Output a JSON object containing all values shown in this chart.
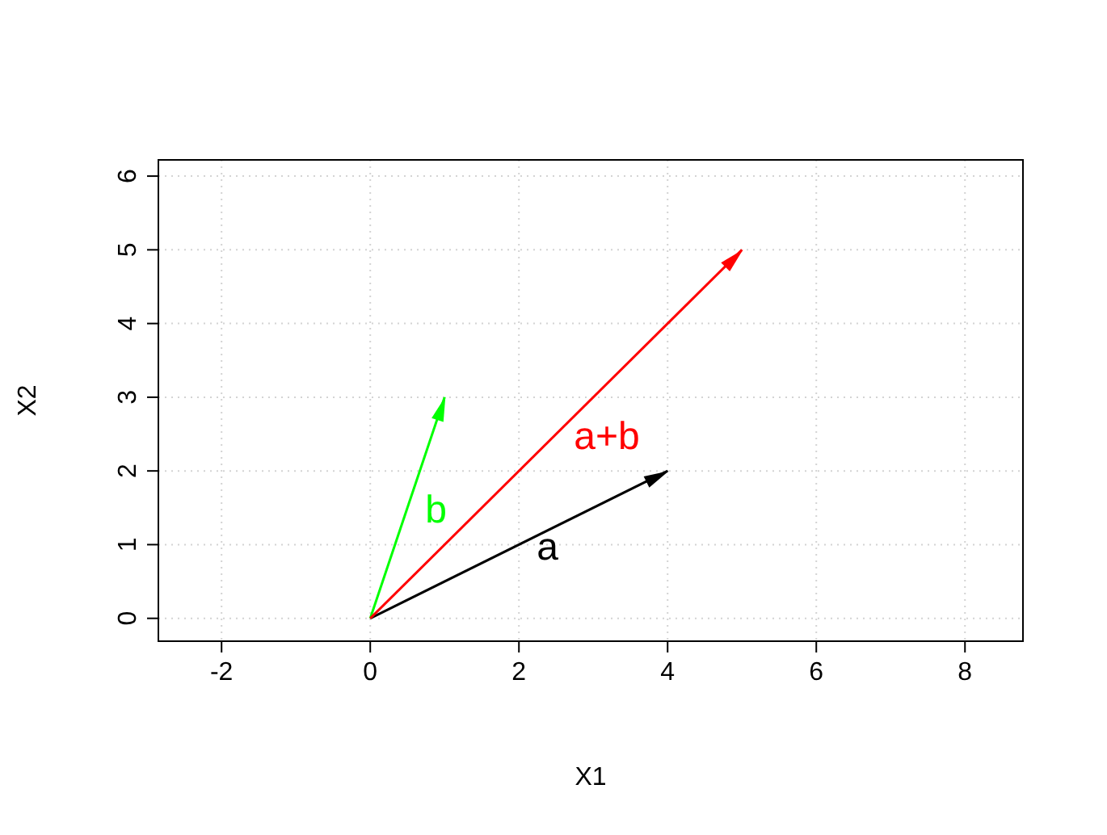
{
  "chart_data": {
    "type": "line",
    "xlabel": "X1",
    "ylabel": "X2",
    "xlim": [
      -2.85,
      8.78
    ],
    "ylim": [
      -0.31,
      6.22
    ],
    "xticks": [
      -2,
      0,
      2,
      4,
      6,
      8
    ],
    "yticks": [
      0,
      1,
      2,
      3,
      4,
      5,
      6
    ],
    "grid": true,
    "line_style": "solid",
    "marker": "none",
    "series": [
      {
        "name": "a",
        "color": "#000000",
        "x": [
          0,
          4
        ],
        "values": [
          0,
          2
        ]
      },
      {
        "name": "b",
        "color": "#00ff00",
        "x": [
          0,
          1
        ],
        "values": [
          0,
          3
        ]
      },
      {
        "name": "a+b",
        "color": "#ff0000",
        "x": [
          0,
          5
        ],
        "values": [
          0,
          5
        ]
      }
    ]
  }
}
